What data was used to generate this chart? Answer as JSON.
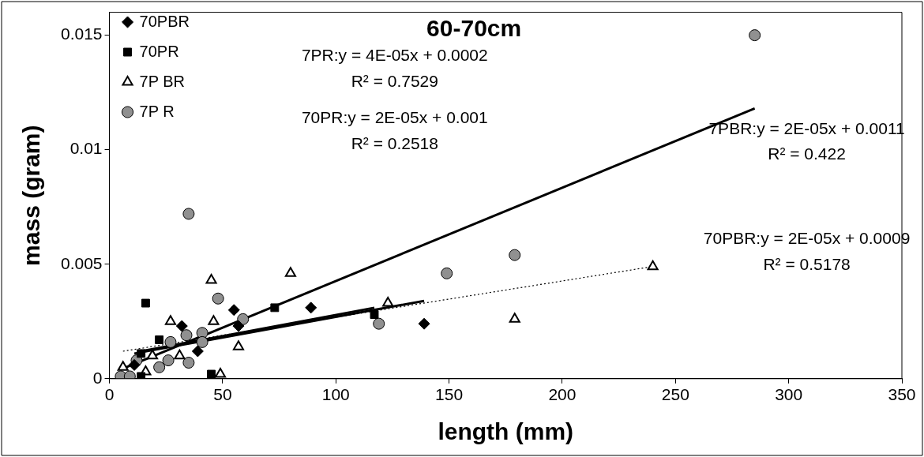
{
  "chart_data": {
    "type": "scatter",
    "title": "60-70cm",
    "xlabel": "length (mm)",
    "ylabel": "mass (gram)",
    "xlim": [
      0,
      350
    ],
    "xticks": [
      0,
      50,
      100,
      150,
      200,
      250,
      300,
      350
    ],
    "ylim": [
      0,
      0.016
    ],
    "yticks": [
      0,
      0.005,
      0.01,
      0.015
    ],
    "grid": false,
    "legend": "top left",
    "series": [
      {
        "name": "70PBR",
        "color": "#000000",
        "marker": "diamond",
        "x": [
          11,
          32,
          39,
          55,
          57,
          89,
          139
        ],
        "values": [
          0.0006,
          0.0023,
          0.0012,
          0.003,
          0.0023,
          0.0031,
          0.0024
        ]
      },
      {
        "name": "70PR",
        "color": "#000000",
        "marker": "square",
        "x": [
          14,
          14,
          16,
          22,
          45,
          73,
          117
        ],
        "values": [
          0.0011,
          0.0001,
          0.0033,
          0.0017,
          0.0002,
          0.0031,
          0.0028
        ]
      },
      {
        "name": "7P BR",
        "color": "#000000",
        "marker": "triangle",
        "x": [
          6,
          16,
          19,
          27,
          31,
          45,
          46,
          49,
          57,
          80,
          123,
          179,
          240
        ],
        "values": [
          0.0005,
          0.0003,
          0.001,
          0.0025,
          0.001,
          0.0043,
          0.0025,
          0.0002,
          0.0014,
          0.0046,
          0.0033,
          0.0026,
          0.0049
        ]
      },
      {
        "name": "7P R",
        "color": "#909090",
        "marker": "circle",
        "x": [
          5,
          9,
          12,
          22,
          26,
          27,
          34,
          35,
          41,
          41,
          48,
          59,
          119,
          149,
          179,
          285,
          35
        ],
        "values": [
          0.0001,
          0.0001,
          0.0008,
          0.0005,
          0.0008,
          0.0016,
          0.0019,
          0.0007,
          0.002,
          0.0016,
          0.0035,
          0.0026,
          0.0024,
          0.0046,
          0.0054,
          0.015,
          0.0072
        ]
      },
      {
        "type": "line",
        "color": "#000000",
        "line_style": "solid",
        "x": [
          5,
          285
        ],
        "values": [
          0.0004,
          0.0118
        ]
      },
      {
        "type": "line",
        "color": "#000000",
        "line_style": "solid",
        "x": [
          14,
          117
        ],
        "values": [
          0.0012,
          0.0031
        ]
      },
      {
        "type": "line",
        "color": "#000000",
        "line_style": "solid",
        "x": [
          11,
          139
        ],
        "values": [
          0.0011,
          0.0034
        ]
      },
      {
        "type": "line",
        "color": "#000000",
        "line_style": "dotted",
        "x": [
          6,
          240
        ],
        "values": [
          0.0012,
          0.0049
        ]
      }
    ],
    "annotations": [
      "7PR:y = 4E-05x + 0.0002",
      "R² = 0.7529",
      "70PR:y = 2E-05x + 0.001",
      "R² = 0.2518",
      "7PBR:y = 2E-05x + 0.0011",
      "R² = 0.422",
      "70PBR:y = 2E-05x + 0.0009",
      "R² = 0.5178"
    ]
  }
}
